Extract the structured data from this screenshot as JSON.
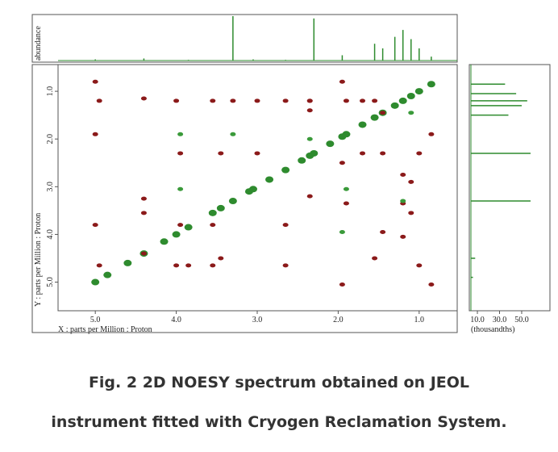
{
  "chart_data": [
    {
      "type": "scatter",
      "xlabel": "X : parts per Million : Proton",
      "ylabel": "Y : parts per Million : Proton",
      "xlim": [
        5.46,
        0.53
      ],
      "ylim": [
        0.44,
        5.6
      ],
      "xticks": [
        {
          "value": 5,
          "label": "5.0"
        },
        {
          "value": 4,
          "label": "4.0"
        },
        {
          "value": 3,
          "label": "3.0"
        },
        {
          "value": 2,
          "label": "2.0"
        },
        {
          "value": 1,
          "label": "1.0"
        }
      ],
      "yticks": [
        {
          "value": 1,
          "label": "1.0"
        },
        {
          "value": 2,
          "label": "2.0"
        },
        {
          "value": 3,
          "label": "3.0"
        },
        {
          "value": 4,
          "label": "4.0"
        },
        {
          "value": 5,
          "label": "5.0"
        }
      ],
      "series": [
        {
          "color": "#2e8b2e",
          "x": [
            5.0,
            4.85,
            4.6,
            4.4,
            4.15,
            4.0,
            3.85,
            3.55,
            3.45,
            3.3,
            3.1,
            3.05,
            2.85,
            2.65,
            2.45,
            2.35,
            2.3,
            2.1,
            1.95,
            1.9,
            1.7,
            1.55,
            1.45,
            1.3,
            1.2,
            1.1,
            1.0,
            0.85
          ],
          "y": [
            5.0,
            4.85,
            4.6,
            4.4,
            4.15,
            4.0,
            3.85,
            3.55,
            3.45,
            3.3,
            3.1,
            3.05,
            2.85,
            2.65,
            2.45,
            2.35,
            2.3,
            2.1,
            1.95,
            1.9,
            1.7,
            1.55,
            1.45,
            1.3,
            1.2,
            1.1,
            1.0,
            0.85
          ]
        },
        {
          "color": "#8b1a1a",
          "x": [
            5.0,
            5.0,
            5.0,
            4.95,
            4.95,
            4.4,
            4.4,
            4.4,
            4.4,
            4.0,
            3.95,
            3.95,
            3.85,
            3.55,
            3.55,
            3.45,
            3.45,
            3.3,
            3.0,
            3.0,
            2.65,
            2.65,
            2.35,
            2.35,
            2.35,
            1.95,
            1.95,
            1.9,
            1.9,
            1.7,
            1.7,
            1.55,
            1.55,
            1.45,
            1.45,
            1.2,
            1.2,
            1.1,
            1.1,
            1.0,
            1.0,
            0.85,
            0.85,
            4.0,
            3.55,
            2.65,
            1.95,
            1.45,
            1.2,
            2.35
          ],
          "y": [
            0.8,
            1.9,
            3.8,
            1.2,
            4.65,
            1.15,
            3.25,
            3.55,
            4.4,
            1.2,
            2.3,
            3.8,
            4.65,
            1.2,
            3.8,
            2.3,
            4.5,
            1.2,
            1.2,
            2.3,
            1.2,
            3.8,
            1.2,
            1.4,
            3.2,
            0.8,
            2.5,
            1.2,
            3.35,
            1.2,
            2.3,
            1.2,
            4.5,
            1.45,
            2.3,
            2.75,
            3.35,
            2.9,
            3.55,
            2.3,
            4.65,
            1.9,
            5.05,
            4.65,
            4.65,
            4.65,
            5.05,
            3.95,
            4.05,
            1.2
          ]
        },
        {
          "color": "#3a9a3a",
          "x": [
            3.95,
            3.3,
            2.35,
            1.95,
            1.2,
            1.9,
            3.95,
            1.1
          ],
          "y": [
            1.9,
            1.9,
            2.0,
            3.95,
            3.3,
            3.05,
            3.05,
            1.45
          ]
        }
      ]
    },
    {
      "type": "stem",
      "ylabel": "abundance",
      "color": "#2e8b2e",
      "xlim": [
        5.46,
        0.53
      ],
      "ylim": [
        0,
        100
      ],
      "x": [
        5.0,
        4.85,
        4.4,
        3.85,
        3.55,
        3.3,
        3.05,
        2.65,
        2.3,
        1.95,
        1.55,
        1.45,
        1.3,
        1.2,
        1.1,
        1.0,
        0.85
      ],
      "values": [
        6,
        4,
        8,
        5,
        4,
        100,
        6,
        5,
        95,
        15,
        40,
        30,
        55,
        70,
        50,
        30,
        12
      ]
    },
    {
      "type": "hstem",
      "xlabel": "(thousandths)",
      "color": "#2e8b2e",
      "xlim": [
        2.7,
        75.5
      ],
      "ylim": [
        0.44,
        5.6
      ],
      "xticks": [
        {
          "value": 10,
          "label": "10.0"
        },
        {
          "value": 30,
          "label": "30.0"
        },
        {
          "value": 50,
          "label": "50.0"
        }
      ],
      "y": [
        0.85,
        1.05,
        1.2,
        1.3,
        1.5,
        2.3,
        3.3,
        4.5,
        4.9
      ],
      "values": [
        35,
        45,
        55,
        50,
        38,
        58,
        58,
        8,
        6
      ]
    }
  ],
  "caption": [
    "Fig. 2 2D NOESY spectrum obtained on JEOL",
    "instrument fitted with Cryogen Reclamation System."
  ]
}
